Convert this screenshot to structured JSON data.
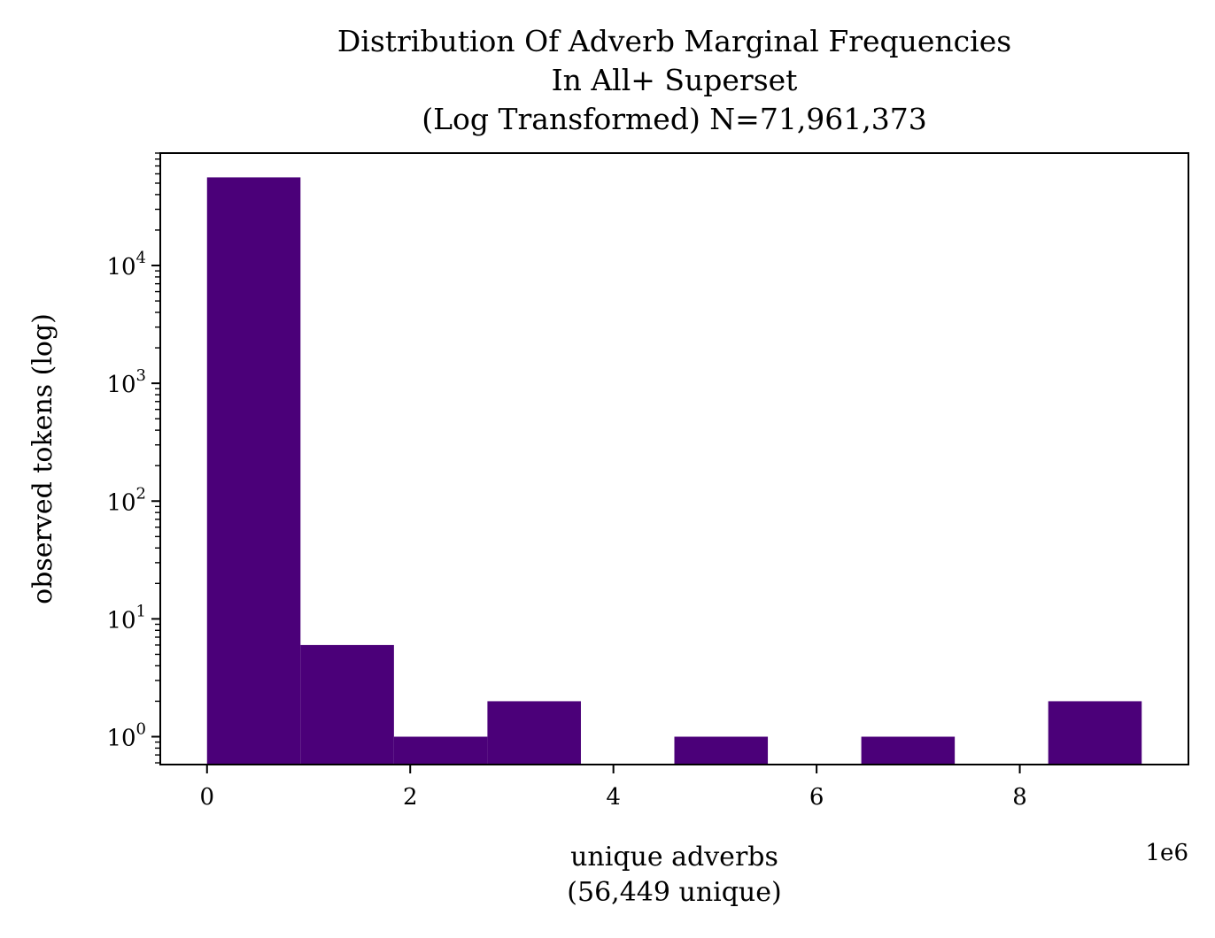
{
  "chart_data": {
    "type": "bar",
    "title_lines": [
      "Distribution Of Adverb Marginal Frequencies",
      "In All+ Superset",
      "(Log Transformed) N=71,961,373"
    ],
    "xlabel_lines": [
      "unique adverbs",
      "(56,449 unique)"
    ],
    "ylabel": "observed tokens (log)",
    "x_offset_label": "1e6",
    "x_scale": 1000000,
    "x_ticks": [
      0,
      2,
      4,
      6,
      8
    ],
    "y_scale": "log",
    "y_tick_exponents": [
      0,
      1,
      2,
      3,
      4
    ],
    "y_tick_base": "10",
    "xlim": [
      -0.46,
      9.66
    ],
    "ylim": [
      0.58,
      90000
    ],
    "grid": false,
    "bar_color": "#4b0079",
    "bins": [
      {
        "x0": 0.0,
        "x1": 0.92,
        "count": 56000
      },
      {
        "x0": 0.92,
        "x1": 1.84,
        "count": 6
      },
      {
        "x0": 1.84,
        "x1": 2.76,
        "count": 1
      },
      {
        "x0": 2.76,
        "x1": 3.68,
        "count": 2
      },
      {
        "x0": 3.68,
        "x1": 4.6,
        "count": 0
      },
      {
        "x0": 4.6,
        "x1": 5.52,
        "count": 1
      },
      {
        "x0": 5.52,
        "x1": 6.44,
        "count": 0
      },
      {
        "x0": 6.44,
        "x1": 7.36,
        "count": 1
      },
      {
        "x0": 7.36,
        "x1": 8.28,
        "count": 0
      },
      {
        "x0": 8.28,
        "x1": 9.2,
        "count": 2
      }
    ]
  }
}
